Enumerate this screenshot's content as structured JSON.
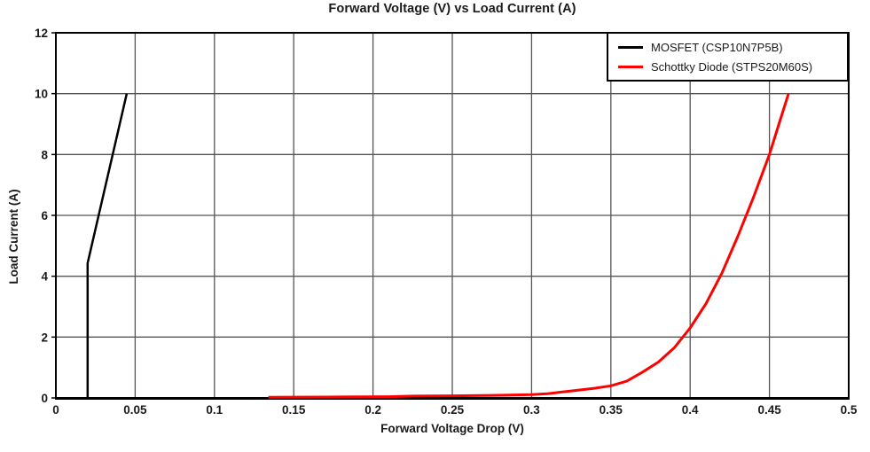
{
  "chart_data": {
    "type": "line",
    "title": "Forward Voltage (V) vs Load Current (A)",
    "xlabel": "Forward Voltage Drop (V)",
    "ylabel": "Load Current (A)",
    "xlim": [
      0,
      0.5
    ],
    "ylim": [
      0,
      12
    ],
    "xticks": {
      "values": [
        0,
        0.05,
        0.1,
        0.15,
        0.2,
        0.25,
        0.3,
        0.35,
        0.4,
        0.45,
        0.5
      ],
      "labels": [
        "0",
        "0.05",
        "0.1",
        "0.15",
        "0.2",
        "0.25",
        "0.3",
        "0.35",
        "0.4",
        "0.45",
        "0.5"
      ]
    },
    "yticks": {
      "values": [
        0,
        2,
        4,
        6,
        8,
        10,
        12
      ],
      "labels": [
        "0",
        "2",
        "4",
        "6",
        "8",
        "10",
        "12"
      ]
    },
    "grid": true,
    "legend_position": "top-right",
    "series": [
      {
        "name": "MOSFET (CSP10N7P5B)",
        "color": "#000000",
        "line_width": 2.5,
        "points": [
          [
            0.02,
            0
          ],
          [
            0.02,
            4.43
          ],
          [
            0.0447,
            10
          ]
        ]
      },
      {
        "name": "Schottky Diode (STPS20M60S)",
        "color": "#ff0000",
        "line_width": 3,
        "points": [
          [
            0.134,
            0.02
          ],
          [
            0.15,
            0.025
          ],
          [
            0.17,
            0.03
          ],
          [
            0.19,
            0.035
          ],
          [
            0.21,
            0.04
          ],
          [
            0.225,
            0.06
          ],
          [
            0.25,
            0.07
          ],
          [
            0.275,
            0.085
          ],
          [
            0.3,
            0.11
          ],
          [
            0.31,
            0.14
          ],
          [
            0.32,
            0.2
          ],
          [
            0.33,
            0.26
          ],
          [
            0.34,
            0.32
          ],
          [
            0.35,
            0.4
          ],
          [
            0.36,
            0.55
          ],
          [
            0.37,
            0.85
          ],
          [
            0.38,
            1.18
          ],
          [
            0.39,
            1.65
          ],
          [
            0.4,
            2.3
          ],
          [
            0.41,
            3.1
          ],
          [
            0.42,
            4.1
          ],
          [
            0.43,
            5.3
          ],
          [
            0.44,
            6.6
          ],
          [
            0.45,
            8.0
          ],
          [
            0.456,
            9.0
          ],
          [
            0.462,
            10.0
          ]
        ]
      }
    ]
  },
  "styles": {
    "background": "#ffffff",
    "grid_color": "#555555",
    "axis_color": "#000000",
    "text_color": "#1a1a1a",
    "accent_red": "#ff0000"
  }
}
